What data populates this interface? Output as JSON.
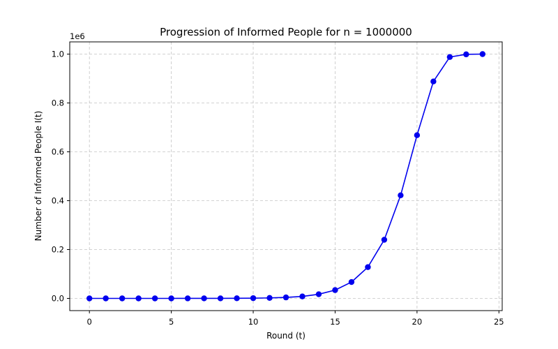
{
  "chart_data": {
    "type": "line",
    "title": "Progression of Informed People for n = 1000000",
    "xlabel": "Round (t)",
    "ylabel": "Number of Informed People I(t)",
    "y_offset_label": "1e6",
    "xlim": [
      -1.2,
      25.2
    ],
    "ylim": [
      -0.05,
      1.05
    ],
    "xticks": [
      0,
      5,
      10,
      15,
      20,
      25
    ],
    "xtick_labels": [
      "0",
      "5",
      "10",
      "15",
      "20",
      "25"
    ],
    "yticks": [
      0.0,
      0.2,
      0.4,
      0.6,
      0.8,
      1.0
    ],
    "ytick_labels": [
      "0.0",
      "0.2",
      "0.4",
      "0.6",
      "0.8",
      "1.0"
    ],
    "grid": true,
    "series": [
      {
        "color": "#0000ee",
        "marker": "circle",
        "x": [
          0,
          1,
          2,
          3,
          4,
          5,
          6,
          7,
          8,
          9,
          10,
          11,
          12,
          13,
          14,
          15,
          16,
          17,
          18,
          19,
          20,
          21,
          22,
          23,
          24
        ],
        "y": [
          1e-06,
          2e-06,
          4e-06,
          8e-06,
          1.6e-05,
          3.2e-05,
          6.4e-05,
          0.000128,
          0.000256,
          0.000512,
          0.001,
          0.002,
          0.004,
          0.008,
          0.017,
          0.034,
          0.067,
          0.128,
          0.24,
          0.422,
          0.668,
          0.888,
          0.988,
          0.999,
          1.0
        ]
      }
    ]
  }
}
